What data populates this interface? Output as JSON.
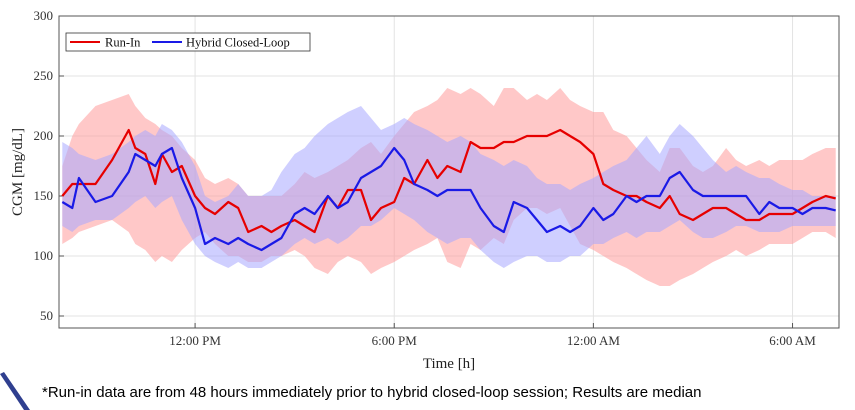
{
  "chart_data": {
    "type": "line",
    "xlabel": "Time [h]",
    "ylabel": "CGM [mg/dL]",
    "x_ticks": [
      "12:00 PM",
      "6:00 PM",
      "12:00 AM",
      "6:00 AM"
    ],
    "y_ticks": [
      "50",
      "100",
      "150",
      "200",
      "250",
      "300"
    ],
    "ylim": [
      40,
      300
    ],
    "xlim": [
      7.9,
      31.4
    ],
    "legend_placement": "top-left",
    "grid": true,
    "series": [
      {
        "name": "Run-In",
        "color": "#e60000",
        "band_color": "#ff9a9a",
        "x": [
          8,
          8.3,
          8.5,
          9,
          9.5,
          10,
          10.2,
          10.5,
          10.8,
          11,
          11.3,
          11.6,
          12,
          12.3,
          12.6,
          13,
          13.3,
          13.6,
          14,
          14.3,
          14.6,
          15,
          15.3,
          15.6,
          16,
          16.3,
          16.6,
          17,
          17.3,
          17.6,
          18,
          18.3,
          18.6,
          19,
          19.3,
          19.6,
          20,
          20.3,
          20.6,
          21,
          21.3,
          21.6,
          22,
          22.3,
          22.6,
          23,
          23.3,
          23.6,
          24,
          24.3,
          24.6,
          25,
          25.3,
          25.6,
          26,
          26.3,
          26.6,
          27,
          27.3,
          27.6,
          28,
          28.3,
          28.6,
          29,
          29.3,
          29.6,
          30,
          30.3,
          30.6,
          31,
          31.3
        ],
        "y": [
          150,
          160,
          160,
          160,
          180,
          205,
          190,
          185,
          160,
          185,
          170,
          175,
          150,
          140,
          135,
          145,
          140,
          120,
          125,
          120,
          125,
          130,
          125,
          120,
          150,
          140,
          155,
          155,
          130,
          140,
          145,
          165,
          160,
          180,
          165,
          175,
          170,
          195,
          190,
          190,
          195,
          195,
          200,
          200,
          200,
          205,
          200,
          195,
          185,
          160,
          155,
          150,
          150,
          145,
          140,
          150,
          135,
          130,
          135,
          140,
          140,
          135,
          130,
          130,
          135,
          135,
          135,
          140,
          145,
          150,
          148
        ],
        "upper": [
          175,
          200,
          210,
          225,
          230,
          235,
          225,
          215,
          210,
          205,
          200,
          190,
          180,
          165,
          160,
          165,
          160,
          150,
          150,
          150,
          150,
          160,
          170,
          165,
          170,
          175,
          180,
          190,
          195,
          185,
          200,
          210,
          220,
          225,
          230,
          240,
          235,
          240,
          235,
          225,
          240,
          240,
          230,
          235,
          230,
          240,
          230,
          225,
          220,
          220,
          205,
          200,
          190,
          180,
          170,
          190,
          190,
          175,
          170,
          175,
          190,
          180,
          175,
          180,
          175,
          180,
          180,
          180,
          185,
          190,
          190
        ],
        "lower": [
          110,
          115,
          120,
          125,
          130,
          120,
          110,
          105,
          95,
          100,
          95,
          105,
          115,
          120,
          110,
          100,
          100,
          95,
          95,
          100,
          100,
          105,
          100,
          90,
          85,
          95,
          100,
          95,
          85,
          90,
          95,
          100,
          105,
          110,
          115,
          95,
          90,
          110,
          105,
          115,
          110,
          130,
          140,
          140,
          135,
          140,
          125,
          110,
          105,
          100,
          95,
          90,
          85,
          80,
          75,
          75,
          80,
          85,
          90,
          95,
          100,
          105,
          100,
          105,
          110,
          110,
          110,
          115,
          120,
          120,
          115
        ]
      },
      {
        "name": "Hybrid Closed-Loop",
        "color": "#1a1ae6",
        "band_color": "#a8a8ff",
        "x": [
          8,
          8.3,
          8.5,
          9,
          9.5,
          10,
          10.2,
          10.5,
          10.8,
          11,
          11.3,
          11.6,
          12,
          12.3,
          12.6,
          13,
          13.3,
          13.6,
          14,
          14.3,
          14.6,
          15,
          15.3,
          15.6,
          16,
          16.3,
          16.6,
          17,
          17.3,
          17.6,
          18,
          18.3,
          18.6,
          19,
          19.3,
          19.6,
          20,
          20.3,
          20.6,
          21,
          21.3,
          21.6,
          22,
          22.3,
          22.6,
          23,
          23.3,
          23.6,
          24,
          24.3,
          24.6,
          25,
          25.3,
          25.6,
          26,
          26.3,
          26.6,
          27,
          27.3,
          27.6,
          28,
          28.3,
          28.6,
          29,
          29.3,
          29.6,
          30,
          30.3,
          30.6,
          31,
          31.3
        ],
        "y": [
          145,
          140,
          165,
          145,
          150,
          170,
          185,
          180,
          175,
          185,
          190,
          165,
          140,
          110,
          115,
          110,
          115,
          110,
          105,
          110,
          115,
          135,
          140,
          135,
          150,
          140,
          145,
          165,
          170,
          175,
          190,
          180,
          160,
          155,
          150,
          155,
          155,
          155,
          140,
          125,
          120,
          145,
          140,
          130,
          120,
          125,
          120,
          125,
          140,
          130,
          135,
          150,
          145,
          150,
          150,
          165,
          170,
          155,
          150,
          150,
          150,
          150,
          150,
          135,
          145,
          140,
          140,
          135,
          140,
          140,
          138
        ],
        "upper": [
          195,
          190,
          185,
          180,
          185,
          195,
          200,
          205,
          200,
          210,
          205,
          195,
          175,
          150,
          145,
          150,
          160,
          150,
          150,
          155,
          170,
          185,
          190,
          200,
          210,
          215,
          220,
          225,
          215,
          205,
          210,
          215,
          210,
          205,
          200,
          195,
          200,
          195,
          185,
          180,
          175,
          180,
          175,
          165,
          160,
          160,
          155,
          160,
          165,
          170,
          175,
          180,
          190,
          200,
          185,
          200,
          210,
          200,
          190,
          180,
          170,
          175,
          170,
          165,
          165,
          160,
          155,
          155,
          150,
          150,
          150
        ],
        "lower": [
          125,
          120,
          125,
          130,
          130,
          140,
          145,
          150,
          140,
          145,
          150,
          130,
          110,
          100,
          95,
          90,
          95,
          90,
          90,
          95,
          100,
          110,
          115,
          110,
          115,
          110,
          115,
          125,
          125,
          130,
          140,
          135,
          130,
          120,
          115,
          110,
          115,
          115,
          105,
          95,
          90,
          95,
          100,
          100,
          95,
          95,
          100,
          100,
          110,
          110,
          115,
          120,
          115,
          120,
          120,
          125,
          130,
          120,
          115,
          115,
          120,
          125,
          125,
          120,
          120,
          120,
          125,
          125,
          125,
          125,
          125
        ]
      }
    ]
  },
  "footnote": "*Run-in data are from 48 hours immediately prior to hybrid closed-loop session; Results are median"
}
